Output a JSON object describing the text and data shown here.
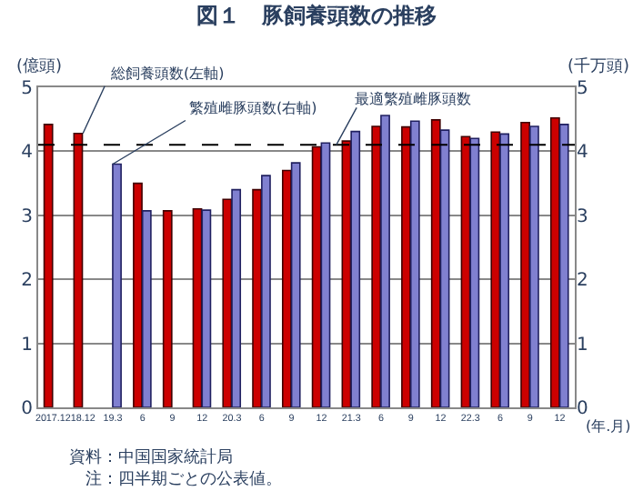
{
  "chart_data": {
    "type": "bar",
    "title": "図１　豚飼養頭数の推移",
    "xlabel": "(年.月)",
    "ylabel": "(億頭)",
    "y2label": "(千万頭)",
    "categories": [
      "2017.12",
      "18.12",
      "19.3",
      "6",
      "9",
      "12",
      "20.3",
      "6",
      "9",
      "12",
      "21.3",
      "6",
      "9",
      "12",
      "22.3",
      "6",
      "9",
      "12"
    ],
    "series": [
      {
        "name": "総飼養頭数(左軸)",
        "color": "#cc0000",
        "values": [
          4.42,
          4.28,
          null,
          3.5,
          3.07,
          3.1,
          3.25,
          3.4,
          3.7,
          4.07,
          4.16,
          4.39,
          4.38,
          4.49,
          4.23,
          4.3,
          4.45,
          4.52
        ]
      },
      {
        "name": "繁殖雌豚頭数(右軸)",
        "color": "#8080d0",
        "axis": "y2",
        "values": [
          null,
          null,
          3.8,
          3.07,
          null,
          3.08,
          3.4,
          3.62,
          3.82,
          4.13,
          4.31,
          4.56,
          4.47,
          4.33,
          4.2,
          4.27,
          4.39,
          4.42
        ]
      }
    ],
    "ylim": [
      0,
      5
    ],
    "yticks": [
      0,
      1,
      2,
      3,
      4,
      5
    ],
    "y2lim": [
      0,
      5
    ],
    "y2ticks": [
      0,
      1,
      2,
      3,
      4,
      5
    ],
    "ref_lines": [
      {
        "axis": "y2",
        "value": 4.1,
        "label": "最適繁殖雌豚頭数",
        "color": "#000000",
        "line_style": "dashed"
      }
    ],
    "grid": "y",
    "legend": false,
    "annotations": [
      "資料：中国国家統計局",
      "　注：四半期ごとの公表値。"
    ]
  }
}
